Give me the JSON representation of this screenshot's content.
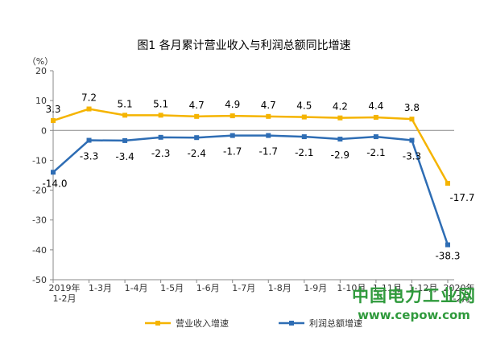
{
  "chart_data": {
    "type": "line",
    "title": "图1  各月累计营业收入与利润总额同比增速",
    "unit_label": "（%）",
    "ylim": [
      -50,
      20
    ],
    "yticks": [
      20,
      10,
      0,
      -10,
      -20,
      -30,
      -40,
      -50
    ],
    "categories": [
      "2019年\n1-2月",
      "1-3月",
      "1-4月",
      "1-5月",
      "1-6月",
      "1-7月",
      "1-8月",
      "1-9月",
      "1-10月",
      "1-11月",
      "1-12月",
      "2020年\n1-2月"
    ],
    "series": [
      {
        "name": "营业收入增速",
        "color": "#f5b400",
        "values": [
          3.3,
          7.2,
          5.1,
          5.1,
          4.7,
          4.9,
          4.7,
          4.5,
          4.2,
          4.4,
          3.8,
          -17.7
        ],
        "labels": [
          "3.3",
          "7.2",
          "5.1",
          "5.1",
          "4.7",
          "4.9",
          "4.7",
          "4.5",
          "4.2",
          "4.4",
          "3.8",
          "-17.7"
        ]
      },
      {
        "name": "利润总额增速",
        "color": "#2e6db4",
        "values": [
          -14.0,
          -3.3,
          -3.4,
          -2.3,
          -2.4,
          -1.7,
          -1.7,
          -2.1,
          -2.9,
          -2.1,
          -3.3,
          -38.3
        ],
        "labels": [
          "-14.0",
          "-3.3",
          "-3.4",
          "-2.3",
          "-2.4",
          "-1.7",
          "-1.7",
          "-2.1",
          "-2.9",
          "-2.1",
          "-3.3",
          "-38.3"
        ]
      }
    ],
    "legend_position": "bottom",
    "grid": false
  },
  "watermark": {
    "name": "中国电力工业网",
    "url": "www.cepow.com"
  }
}
